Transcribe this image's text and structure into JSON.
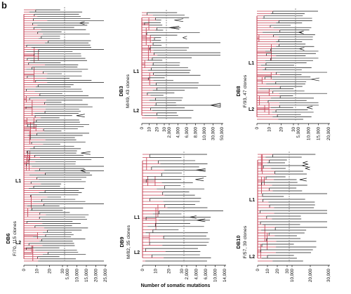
{
  "figure": {
    "panel_letter": "b",
    "x_axis_title": "Number of somatic mutations",
    "colors": {
      "trunk": "#c23b4e",
      "branch": "#1a1a1a",
      "axis": "#111111",
      "divider": "#777777"
    }
  },
  "panels": [
    {
      "id": "db6",
      "donor": "DB6",
      "info": "F/70, 115 clones",
      "lineages": [
        "L1",
        "L2"
      ],
      "ticks_left": [
        "0",
        "10",
        "20",
        "30"
      ],
      "ticks_right": [
        "5,000",
        "10,000",
        "15,000",
        "20,000",
        "25,000"
      ]
    },
    {
      "id": "db3",
      "donor": "DB3",
      "info": "M/49, 43 clones",
      "lineages": [
        "L1",
        "L2"
      ],
      "ticks_left": [
        "0",
        "10",
        "20",
        "30"
      ],
      "ticks_right": [
        "2,000",
        "4,000",
        "6,000",
        "8,000",
        "10,000",
        "30,000",
        "50,000"
      ]
    },
    {
      "id": "db8",
      "donor": "DB8",
      "info": "F/93, 47 clones",
      "lineages": [
        "L1",
        "L2"
      ],
      "ticks_left": [
        "0",
        "10",
        "20",
        "30"
      ],
      "ticks_right": [
        "5,000",
        "10,000",
        "15,000",
        "20,000"
      ]
    },
    {
      "id": "db9",
      "donor": "DB9",
      "info": "M/82, 35 clones",
      "lineages": [
        "L1",
        "L2"
      ],
      "ticks_left": [
        "0",
        "10",
        "20",
        "30"
      ],
      "ticks_right": [
        "2,000",
        "4,000",
        "6,000",
        "10,000",
        "14,000"
      ]
    },
    {
      "id": "db10",
      "donor": "DB10",
      "info": "F/57, 39 clones",
      "lineages": [
        "L1",
        "L2"
      ],
      "ticks_left": [
        "0",
        "10",
        "20",
        "30"
      ],
      "ticks_right": [
        "10,000",
        "20,000",
        "30,000"
      ]
    }
  ]
}
